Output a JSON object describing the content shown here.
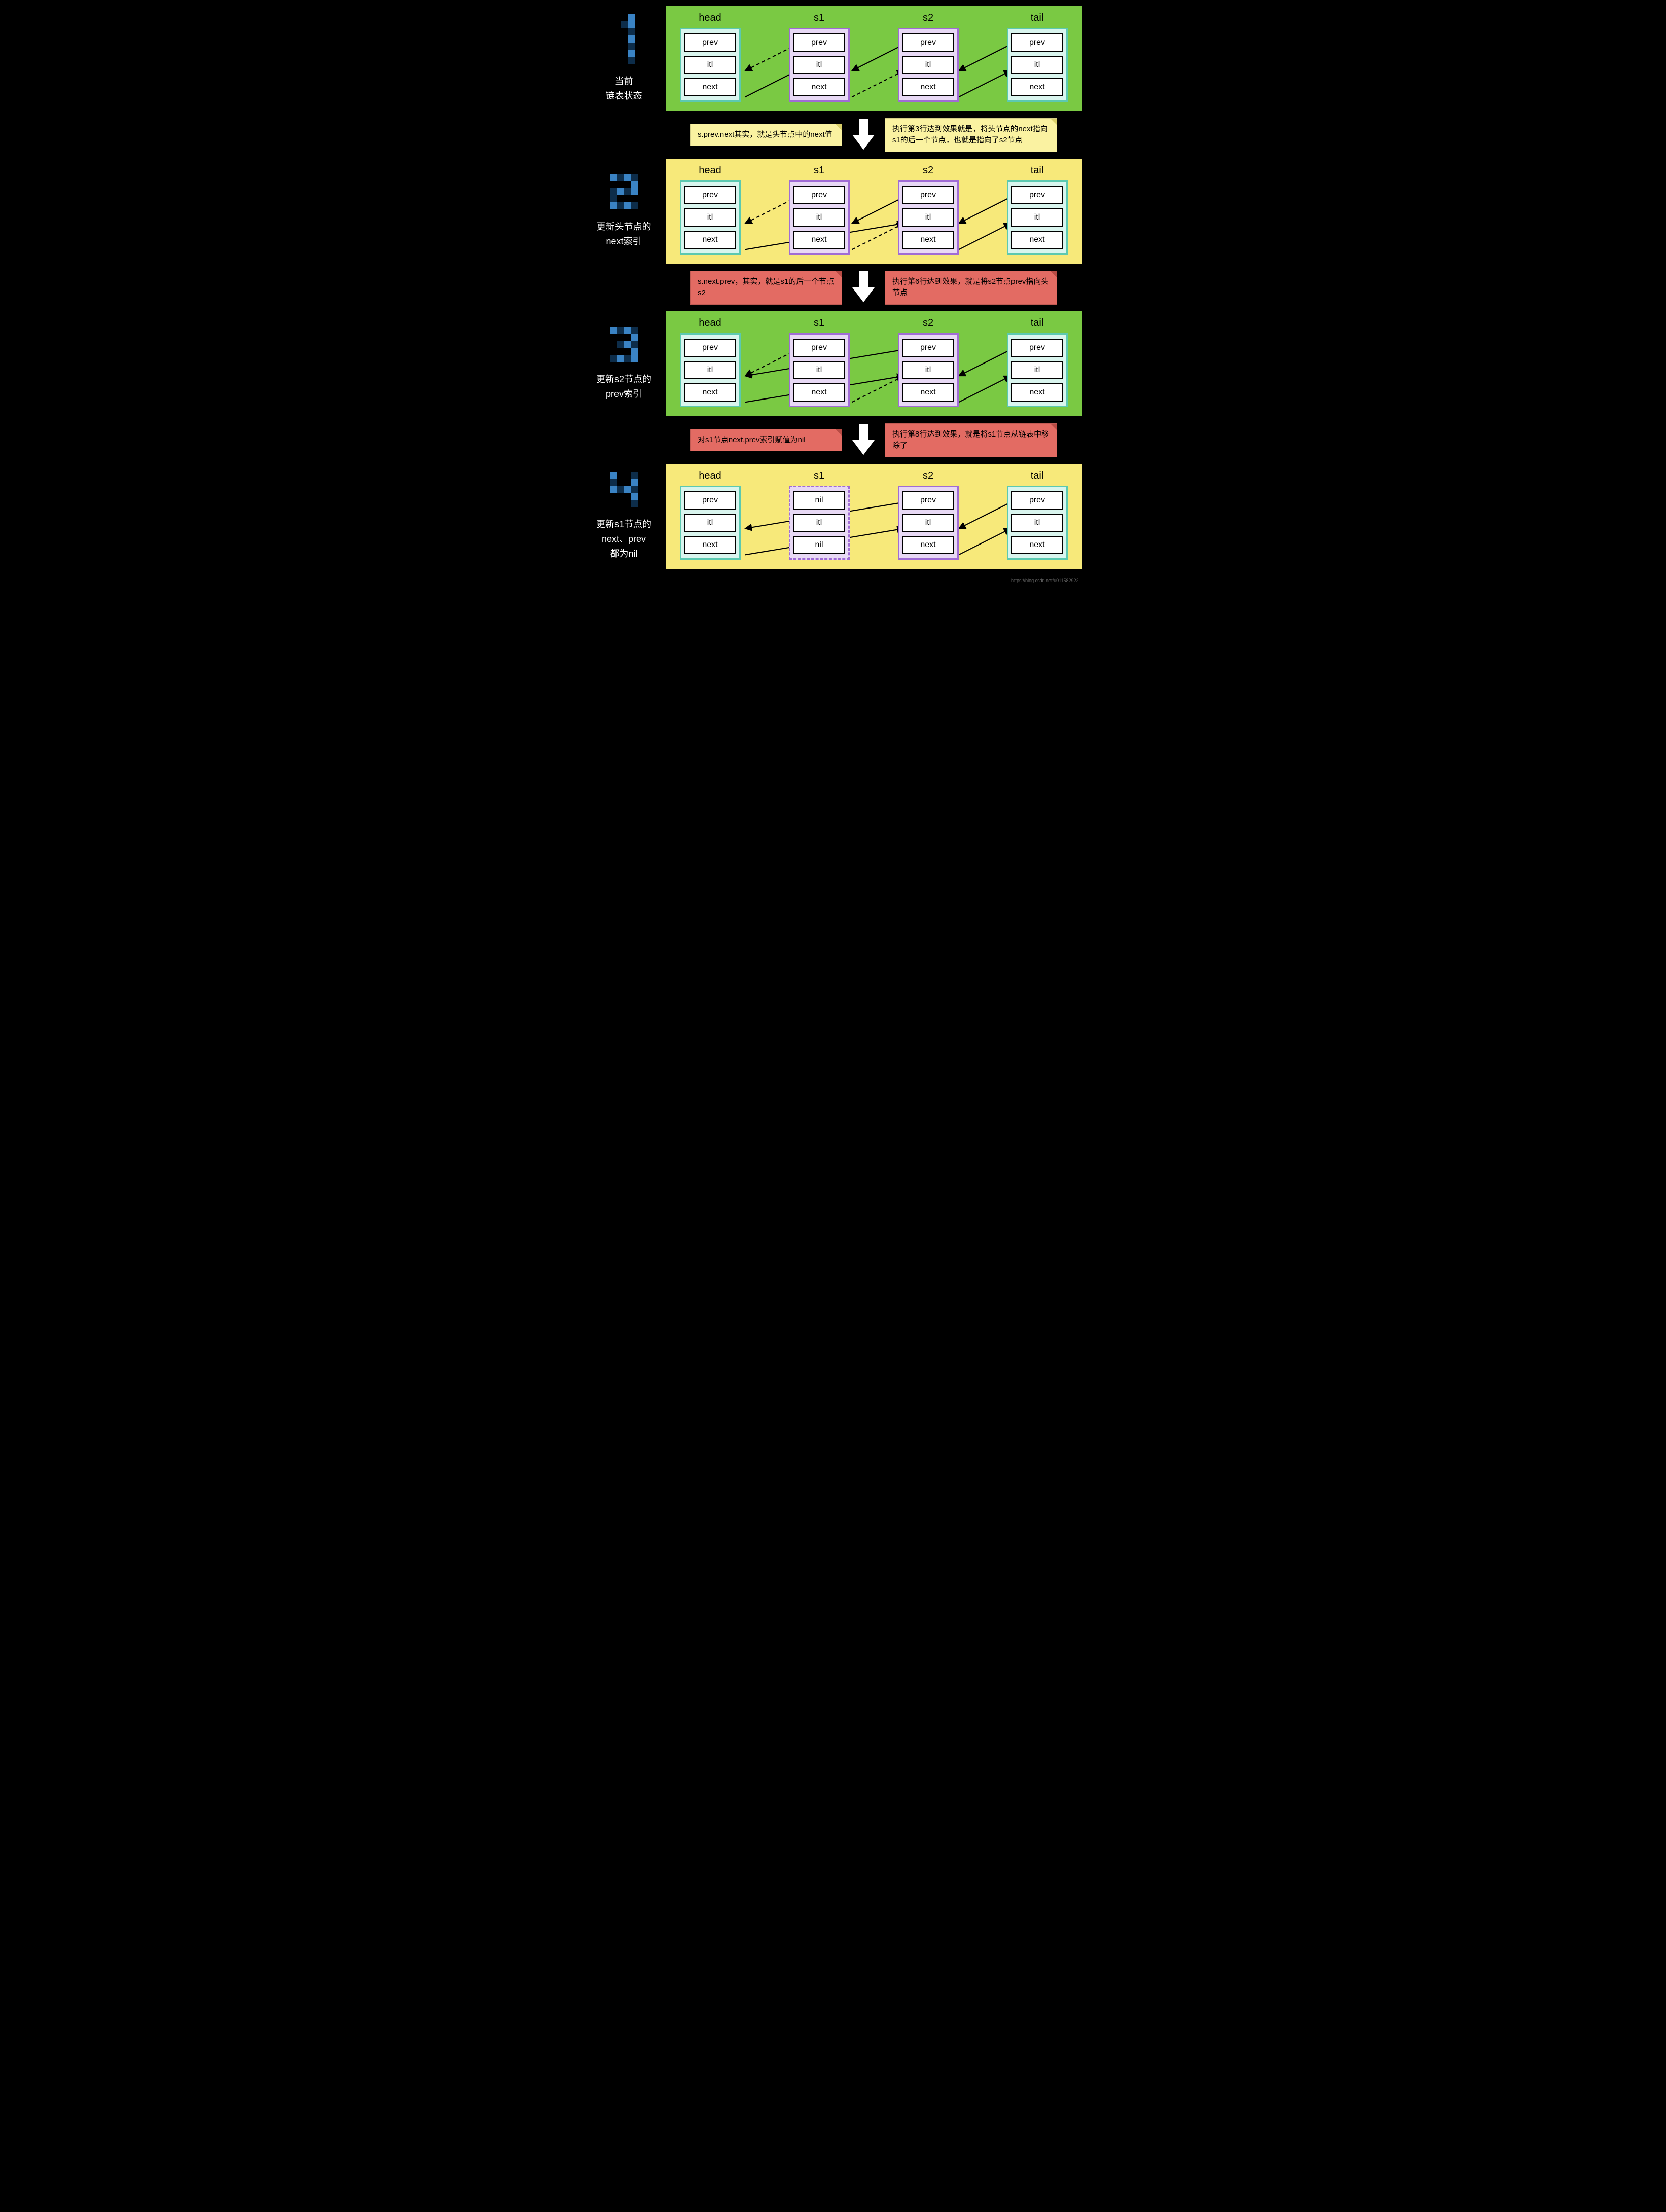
{
  "digit_pixel": {
    "size": 10,
    "colors": {
      "a": "#3a83c4",
      "b": "#0d2d4a"
    },
    "1": [
      [
        2,
        0,
        "a"
      ],
      [
        1,
        1,
        "b"
      ],
      [
        2,
        1,
        "a"
      ],
      [
        2,
        2,
        "b"
      ],
      [
        2,
        3,
        "a"
      ],
      [
        2,
        4,
        "b"
      ],
      [
        2,
        5,
        "a"
      ],
      [
        2,
        6,
        "b"
      ]
    ],
    "2": [
      [
        0,
        0,
        "a"
      ],
      [
        1,
        0,
        "b"
      ],
      [
        2,
        0,
        "a"
      ],
      [
        3,
        0,
        "b"
      ],
      [
        3,
        1,
        "a"
      ],
      [
        0,
        2,
        "b"
      ],
      [
        1,
        2,
        "a"
      ],
      [
        2,
        2,
        "b"
      ],
      [
        3,
        2,
        "a"
      ],
      [
        0,
        3,
        "b"
      ],
      [
        0,
        4,
        "a"
      ],
      [
        1,
        4,
        "b"
      ],
      [
        2,
        4,
        "a"
      ],
      [
        3,
        4,
        "b"
      ]
    ],
    "3": [
      [
        0,
        0,
        "a"
      ],
      [
        1,
        0,
        "b"
      ],
      [
        2,
        0,
        "a"
      ],
      [
        3,
        0,
        "b"
      ],
      [
        3,
        1,
        "a"
      ],
      [
        1,
        2,
        "b"
      ],
      [
        2,
        2,
        "a"
      ],
      [
        3,
        2,
        "b"
      ],
      [
        3,
        3,
        "a"
      ],
      [
        0,
        4,
        "b"
      ],
      [
        1,
        4,
        "a"
      ],
      [
        2,
        4,
        "b"
      ],
      [
        3,
        4,
        "a"
      ]
    ],
    "4": [
      [
        0,
        0,
        "a"
      ],
      [
        3,
        0,
        "b"
      ],
      [
        0,
        1,
        "b"
      ],
      [
        3,
        1,
        "a"
      ],
      [
        0,
        2,
        "a"
      ],
      [
        1,
        2,
        "b"
      ],
      [
        2,
        2,
        "a"
      ],
      [
        3,
        2,
        "b"
      ],
      [
        3,
        3,
        "a"
      ],
      [
        3,
        4,
        "b"
      ]
    ]
  },
  "labels": {
    "head": "head",
    "s1": "s1",
    "s2": "s2",
    "tail": "tail"
  },
  "cells": {
    "prev": "prev",
    "itl": "itl",
    "next": "next",
    "nil": "nil"
  },
  "steps": [
    {
      "num": "1",
      "caption": "当前\n链表状态",
      "bg": "green",
      "cols": [
        {
          "label": "head",
          "style": "teal",
          "cells": [
            "prev",
            "itl",
            "next"
          ]
        },
        {
          "label": "s1",
          "style": "purple",
          "cells": [
            "prev",
            "itl",
            "next"
          ]
        },
        {
          "label": "s2",
          "style": "purple",
          "cells": [
            "prev",
            "itl",
            "next"
          ]
        },
        {
          "label": "tail",
          "style": "teal",
          "cells": [
            "prev",
            "itl",
            "next"
          ]
        }
      ],
      "arrows": [
        {
          "from": [
            0,
            2
          ],
          "to": [
            1,
            1
          ],
          "dash": false
        },
        {
          "from": [
            1,
            0
          ],
          "to": [
            0,
            1
          ],
          "dash": true
        },
        {
          "from": [
            1,
            2
          ],
          "to": [
            2,
            1
          ],
          "dash": true
        },
        {
          "from": [
            2,
            0
          ],
          "to": [
            1,
            1
          ],
          "dash": false
        },
        {
          "from": [
            2,
            2
          ],
          "to": [
            3,
            1
          ],
          "dash": false
        },
        {
          "from": [
            3,
            0
          ],
          "to": [
            2,
            1
          ],
          "dash": false
        }
      ]
    },
    {
      "num": "2",
      "caption": "更新头节点的\nnext索引",
      "bg": "yellow",
      "cols": [
        {
          "label": "head",
          "style": "teal",
          "cells": [
            "prev",
            "itl",
            "next"
          ]
        },
        {
          "label": "s1",
          "style": "purple",
          "cells": [
            "prev",
            "itl",
            "next"
          ]
        },
        {
          "label": "s2",
          "style": "purple",
          "cells": [
            "prev",
            "itl",
            "next"
          ]
        },
        {
          "label": "tail",
          "style": "teal",
          "cells": [
            "prev",
            "itl",
            "next"
          ]
        }
      ],
      "arrows": [
        {
          "from": [
            1,
            0
          ],
          "to": [
            0,
            1
          ],
          "dash": true
        },
        {
          "from": [
            0,
            2
          ],
          "to": [
            2,
            1
          ],
          "dash": false,
          "long": true
        },
        {
          "from": [
            1,
            2
          ],
          "to": [
            2,
            1
          ],
          "dash": true
        },
        {
          "from": [
            2,
            0
          ],
          "to": [
            1,
            1
          ],
          "dash": false
        },
        {
          "from": [
            2,
            2
          ],
          "to": [
            3,
            1
          ],
          "dash": false
        },
        {
          "from": [
            3,
            0
          ],
          "to": [
            2,
            1
          ],
          "dash": false
        }
      ]
    },
    {
      "num": "3",
      "caption": "更新s2节点的\nprev索引",
      "bg": "green",
      "cols": [
        {
          "label": "head",
          "style": "teal",
          "cells": [
            "prev",
            "itl",
            "next"
          ]
        },
        {
          "label": "s1",
          "style": "purple",
          "cells": [
            "prev",
            "itl",
            "next"
          ]
        },
        {
          "label": "s2",
          "style": "purple",
          "cells": [
            "prev",
            "itl",
            "next"
          ]
        },
        {
          "label": "tail",
          "style": "teal",
          "cells": [
            "prev",
            "itl",
            "next"
          ]
        }
      ],
      "arrows": [
        {
          "from": [
            1,
            0
          ],
          "to": [
            0,
            1
          ],
          "dash": true
        },
        {
          "from": [
            0,
            2
          ],
          "to": [
            2,
            1
          ],
          "dash": false,
          "long": true
        },
        {
          "from": [
            2,
            0
          ],
          "to": [
            0,
            1
          ],
          "dash": false,
          "long": true
        },
        {
          "from": [
            1,
            2
          ],
          "to": [
            2,
            1
          ],
          "dash": true
        },
        {
          "from": [
            2,
            2
          ],
          "to": [
            3,
            1
          ],
          "dash": false
        },
        {
          "from": [
            3,
            0
          ],
          "to": [
            2,
            1
          ],
          "dash": false
        }
      ]
    },
    {
      "num": "4",
      "caption": "更新s1节点的\nnext、prev\n都为nil",
      "bg": "yellow",
      "cols": [
        {
          "label": "head",
          "style": "teal",
          "cells": [
            "prev",
            "itl",
            "next"
          ]
        },
        {
          "label": "s1",
          "style": "purple dashed",
          "cells": [
            "nil",
            "itl",
            "nil"
          ]
        },
        {
          "label": "s2",
          "style": "purple",
          "cells": [
            "prev",
            "itl",
            "next"
          ]
        },
        {
          "label": "tail",
          "style": "teal",
          "cells": [
            "prev",
            "itl",
            "next"
          ]
        }
      ],
      "arrows": [
        {
          "from": [
            0,
            2
          ],
          "to": [
            2,
            1
          ],
          "dash": false,
          "long": true
        },
        {
          "from": [
            2,
            0
          ],
          "to": [
            0,
            1
          ],
          "dash": false,
          "long": true
        },
        {
          "from": [
            2,
            2
          ],
          "to": [
            3,
            1
          ],
          "dash": false
        },
        {
          "from": [
            3,
            0
          ],
          "to": [
            2,
            1
          ],
          "dash": false
        }
      ]
    }
  ],
  "transitions": [
    {
      "color": "yellow",
      "left": "s.prev.next其实，就是头节点中的next值",
      "right": "执行第3行达到效果就是，将头节点的next指向s1的后一个节点，也就是指向了s2节点"
    },
    {
      "color": "red",
      "left": "s.next.prev，其实，就是s1的后一个节点s2",
      "right": "执行第6行达到效果，就是将s2节点prev指向头节点"
    },
    {
      "color": "red",
      "left": "对s1节点next,prev索引赋值为nil",
      "right": "执行第8行达到效果，就是将s1节点从链表中移除了"
    }
  ],
  "style": {
    "panel_green": "#7ac943",
    "panel_yellow": "#f7e97a",
    "node_teal_bg": "#d9f5ee",
    "node_teal_border": "#5cc9b0",
    "node_purple_bg": "#e8d9f5",
    "node_purple_border": "#a06cd5",
    "note_yellow": "#faf2a1",
    "note_red": "#e36b63",
    "arrow_color": "#000000",
    "font_size_label": 20,
    "font_size_cell": 16,
    "font_size_caption": 18,
    "font_size_note": 15
  },
  "layout": {
    "panel_inner_width": 760,
    "col_centers_x": [
      95,
      290,
      485,
      680
    ],
    "cell_y": [
      70,
      118,
      166
    ],
    "cell_edge_left_dx": -50,
    "cell_edge_right_dx": 50
  },
  "watermark": "https://blog.csdn.net/u011582922"
}
